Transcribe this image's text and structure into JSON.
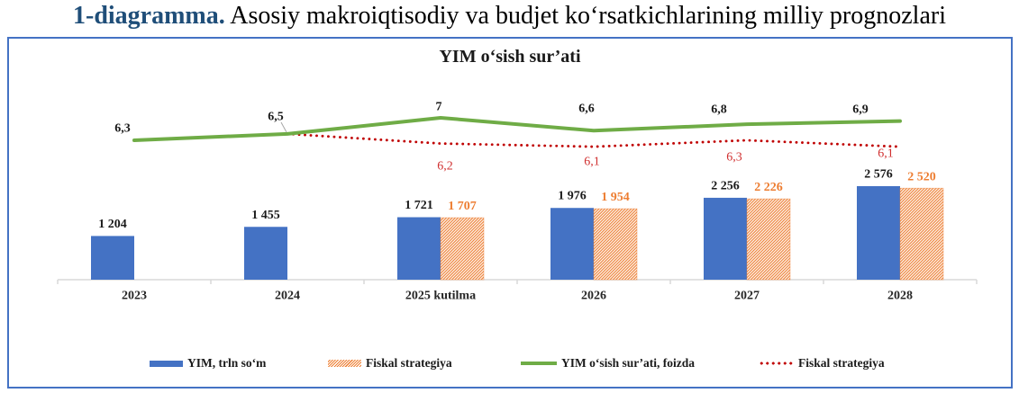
{
  "caption": {
    "prefix": "1-diagramma.",
    "text": " Asosiy makroiqtisodiy va budjet ko‘rsatkichlarining milliy prognozlari"
  },
  "colors": {
    "box_border": "#4472C4",
    "caption_prefix": "#1F4E79",
    "bar_blue": "#4472C4",
    "bar_orange": "#ED7D31",
    "line_green": "#6FAC46",
    "line_red": "#C00000",
    "red_label": "#D03030",
    "axis_gray": "#D9D9D9"
  },
  "chart_data": {
    "type": "combo-bar-line",
    "title": "YIM o‘sish sur’ati",
    "categories": [
      "2023",
      "2024",
      "2025 kutilma",
      "2026",
      "2027",
      "2028"
    ],
    "bar_series": [
      {
        "name": "YIM, trln so‘m",
        "color": "#4472C4",
        "style": "solid",
        "values": [
          1204,
          1455,
          1721,
          1976,
          2256,
          2576
        ],
        "labels": [
          "1 204",
          "1 455",
          "1 721",
          "1 976",
          "2 256",
          "2 576"
        ]
      },
      {
        "name": "Fiskal strategiya",
        "color": "#ED7D31",
        "style": "hatched",
        "values": [
          null,
          null,
          1707,
          1954,
          2226,
          2520
        ],
        "labels": [
          null,
          null,
          "1 707",
          "1 954",
          "2 226",
          "2 520"
        ]
      }
    ],
    "line_series": [
      {
        "name": "YIM o‘sish sur’ati, foizda",
        "color": "#6FAC46",
        "style": "solid",
        "values": [
          6.3,
          6.5,
          7,
          6.6,
          6.8,
          6.9
        ],
        "labels": [
          "6,3",
          "6,5",
          "7",
          "6,6",
          "6,8",
          "6,9"
        ]
      },
      {
        "name": "Fiskal strategiya",
        "color": "#C00000",
        "style": "dotted",
        "values": [
          null,
          6.5,
          6.2,
          6.1,
          6.3,
          6.1
        ],
        "labels": [
          null,
          null,
          "6,2",
          "6,1",
          "6,3",
          "6,1"
        ]
      }
    ],
    "legend": [
      {
        "label": "YIM, trln so‘m",
        "swatch": "blue-bar"
      },
      {
        "label": "Fiskal strategiya",
        "swatch": "orange-hatched-bar"
      },
      {
        "label": "YIM o‘sish sur’ati, foizda",
        "swatch": "green-line"
      },
      {
        "label": "Fiskal strategiya",
        "swatch": "red-dotted-line"
      }
    ],
    "axes": {
      "x_axis_visible": true,
      "y_axis_visible": false,
      "gridlines": false
    }
  }
}
